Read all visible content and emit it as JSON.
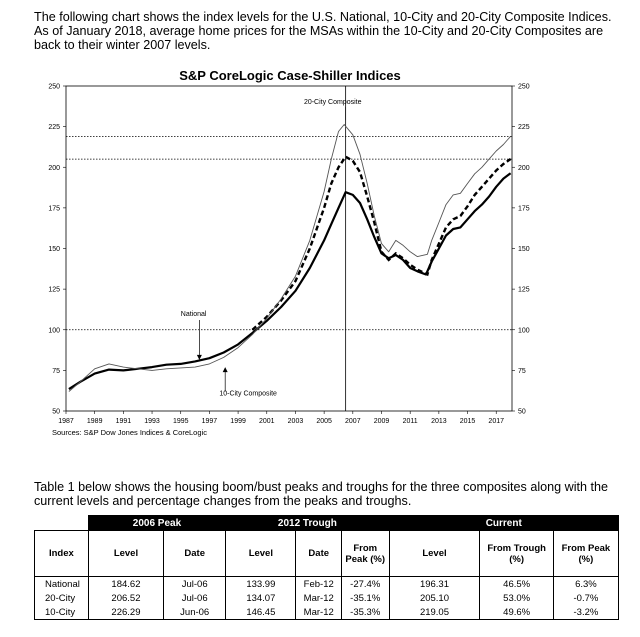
{
  "intro_text": "The following chart shows the index levels for the U.S. National, 10-City and 20-City Composite Indices. As of January 2018, average home prices for the MSAs within the 10-City and 20-City Composites are back to their winter 2007 levels.",
  "table_intro_text": "Table 1 below shows the housing boom/bust peaks and troughs for the three composites along with the current levels and percentage changes from the peaks and troughs.",
  "chart_data": {
    "type": "line",
    "title": "S&P CoreLogic Case-Shiller Indices",
    "source": "Sources: S&P Dow Jones Indices & CoreLogic",
    "xlim": [
      1987,
      2018.1
    ],
    "ylim": [
      50,
      250
    ],
    "x_ticks": [
      "1987",
      "1989",
      "1991",
      "1993",
      "1995",
      "1997",
      "1999",
      "2001",
      "2003",
      "2005",
      "2007",
      "2009",
      "2011",
      "2013",
      "2015",
      "2017"
    ],
    "y_ticks": [
      "50",
      "75",
      "100",
      "125",
      "150",
      "175",
      "200",
      "225",
      "250"
    ],
    "reference_lines": [
      100,
      205,
      219
    ],
    "peak_marker_x": 2006.5,
    "annotations": [
      "20-City Composite",
      "National",
      "10-City Composite"
    ],
    "series": [
      {
        "name": "National",
        "style": "thick",
        "points": [
          [
            1987.2,
            63.5
          ],
          [
            1988,
            68
          ],
          [
            1989,
            73
          ],
          [
            1990,
            75.5
          ],
          [
            1991,
            75
          ],
          [
            1992,
            76
          ],
          [
            1993,
            77
          ],
          [
            1994,
            78.5
          ],
          [
            1995,
            79
          ],
          [
            1996,
            80.5
          ],
          [
            1997,
            82.5
          ],
          [
            1998,
            86
          ],
          [
            1999,
            91
          ],
          [
            2000,
            98
          ],
          [
            2001,
            105.5
          ],
          [
            2002,
            114
          ],
          [
            2003,
            124
          ],
          [
            2004,
            138
          ],
          [
            2005,
            155
          ],
          [
            2005.5,
            165
          ],
          [
            2006,
            175
          ],
          [
            2006.5,
            184.62
          ],
          [
            2007,
            183
          ],
          [
            2007.5,
            178
          ],
          [
            2008,
            168
          ],
          [
            2008.5,
            157
          ],
          [
            2009,
            147
          ],
          [
            2009.5,
            144
          ],
          [
            2010,
            146
          ],
          [
            2010.5,
            143
          ],
          [
            2011,
            138
          ],
          [
            2011.5,
            136
          ],
          [
            2012.1,
            133.99
          ],
          [
            2012.5,
            142
          ],
          [
            2013,
            150
          ],
          [
            2013.5,
            158
          ],
          [
            2014,
            162
          ],
          [
            2014.5,
            163
          ],
          [
            2015,
            168
          ],
          [
            2015.5,
            173
          ],
          [
            2016,
            177
          ],
          [
            2016.5,
            182
          ],
          [
            2017,
            188
          ],
          [
            2017.5,
            193
          ],
          [
            2018,
            196.31
          ]
        ]
      },
      {
        "name": "20-City",
        "style": "dashed",
        "points": [
          [
            2000,
            100
          ],
          [
            2001,
            108
          ],
          [
            2002,
            118
          ],
          [
            2003,
            130
          ],
          [
            2004,
            150
          ],
          [
            2005,
            175
          ],
          [
            2005.5,
            190
          ],
          [
            2006,
            200
          ],
          [
            2006.5,
            206.52
          ],
          [
            2007,
            204
          ],
          [
            2007.5,
            197
          ],
          [
            2008,
            182
          ],
          [
            2008.5,
            166
          ],
          [
            2009,
            148
          ],
          [
            2009.5,
            143
          ],
          [
            2010,
            147
          ],
          [
            2010.5,
            144
          ],
          [
            2011,
            140
          ],
          [
            2011.5,
            137
          ],
          [
            2012.2,
            134.07
          ],
          [
            2012.5,
            143
          ],
          [
            2013,
            153
          ],
          [
            2013.5,
            163
          ],
          [
            2014,
            168
          ],
          [
            2014.5,
            170
          ],
          [
            2015,
            176
          ],
          [
            2015.5,
            183
          ],
          [
            2016,
            188
          ],
          [
            2016.5,
            193
          ],
          [
            2017,
            198
          ],
          [
            2017.5,
            202
          ],
          [
            2018,
            205.1
          ]
        ]
      },
      {
        "name": "10-City",
        "style": "thin",
        "points": [
          [
            1987.2,
            62
          ],
          [
            1988,
            68
          ],
          [
            1989,
            76
          ],
          [
            1990,
            79
          ],
          [
            1991,
            77
          ],
          [
            1992,
            76
          ],
          [
            1993,
            75
          ],
          [
            1994,
            76
          ],
          [
            1995,
            76.5
          ],
          [
            1996,
            77
          ],
          [
            1997,
            79
          ],
          [
            1998,
            83
          ],
          [
            1999,
            89
          ],
          [
            2000,
            97
          ],
          [
            2001,
            107
          ],
          [
            2002,
            119
          ],
          [
            2003,
            133
          ],
          [
            2004,
            155
          ],
          [
            2005,
            185
          ],
          [
            2005.5,
            205
          ],
          [
            2006,
            222
          ],
          [
            2006.4,
            226.29
          ],
          [
            2007,
            220
          ],
          [
            2007.5,
            208
          ],
          [
            2008,
            190
          ],
          [
            2008.5,
            170
          ],
          [
            2009,
            153
          ],
          [
            2009.5,
            148
          ],
          [
            2010,
            155
          ],
          [
            2010.5,
            152
          ],
          [
            2011,
            148
          ],
          [
            2011.5,
            145
          ],
          [
            2012.2,
            146.45
          ],
          [
            2012.5,
            155
          ],
          [
            2013,
            166
          ],
          [
            2013.5,
            177
          ],
          [
            2014,
            183
          ],
          [
            2014.5,
            184
          ],
          [
            2015,
            190
          ],
          [
            2015.5,
            196
          ],
          [
            2016,
            200
          ],
          [
            2016.5,
            205
          ],
          [
            2017,
            210
          ],
          [
            2017.5,
            214
          ],
          [
            2018,
            219.05
          ]
        ]
      }
    ]
  },
  "table": {
    "groups": [
      "2006 Peak",
      "2012 Trough",
      "Current"
    ],
    "headers": [
      "Index",
      "Level",
      "Date",
      "Level",
      "Date",
      "From Peak (%)",
      "Level",
      "From Trough (%)",
      "From Peak (%)"
    ],
    "rows": [
      [
        "National",
        "184.62",
        "Jul-06",
        "133.99",
        "Feb-12",
        "-27.4%",
        "196.31",
        "46.5%",
        "6.3%"
      ],
      [
        "20-City",
        "206.52",
        "Jul-06",
        "134.07",
        "Mar-12",
        "-35.1%",
        "205.10",
        "53.0%",
        "-0.7%"
      ],
      [
        "10-City",
        "226.29",
        "Jun-06",
        "146.45",
        "Mar-12",
        "-35.3%",
        "219.05",
        "49.6%",
        "-3.2%"
      ]
    ]
  }
}
